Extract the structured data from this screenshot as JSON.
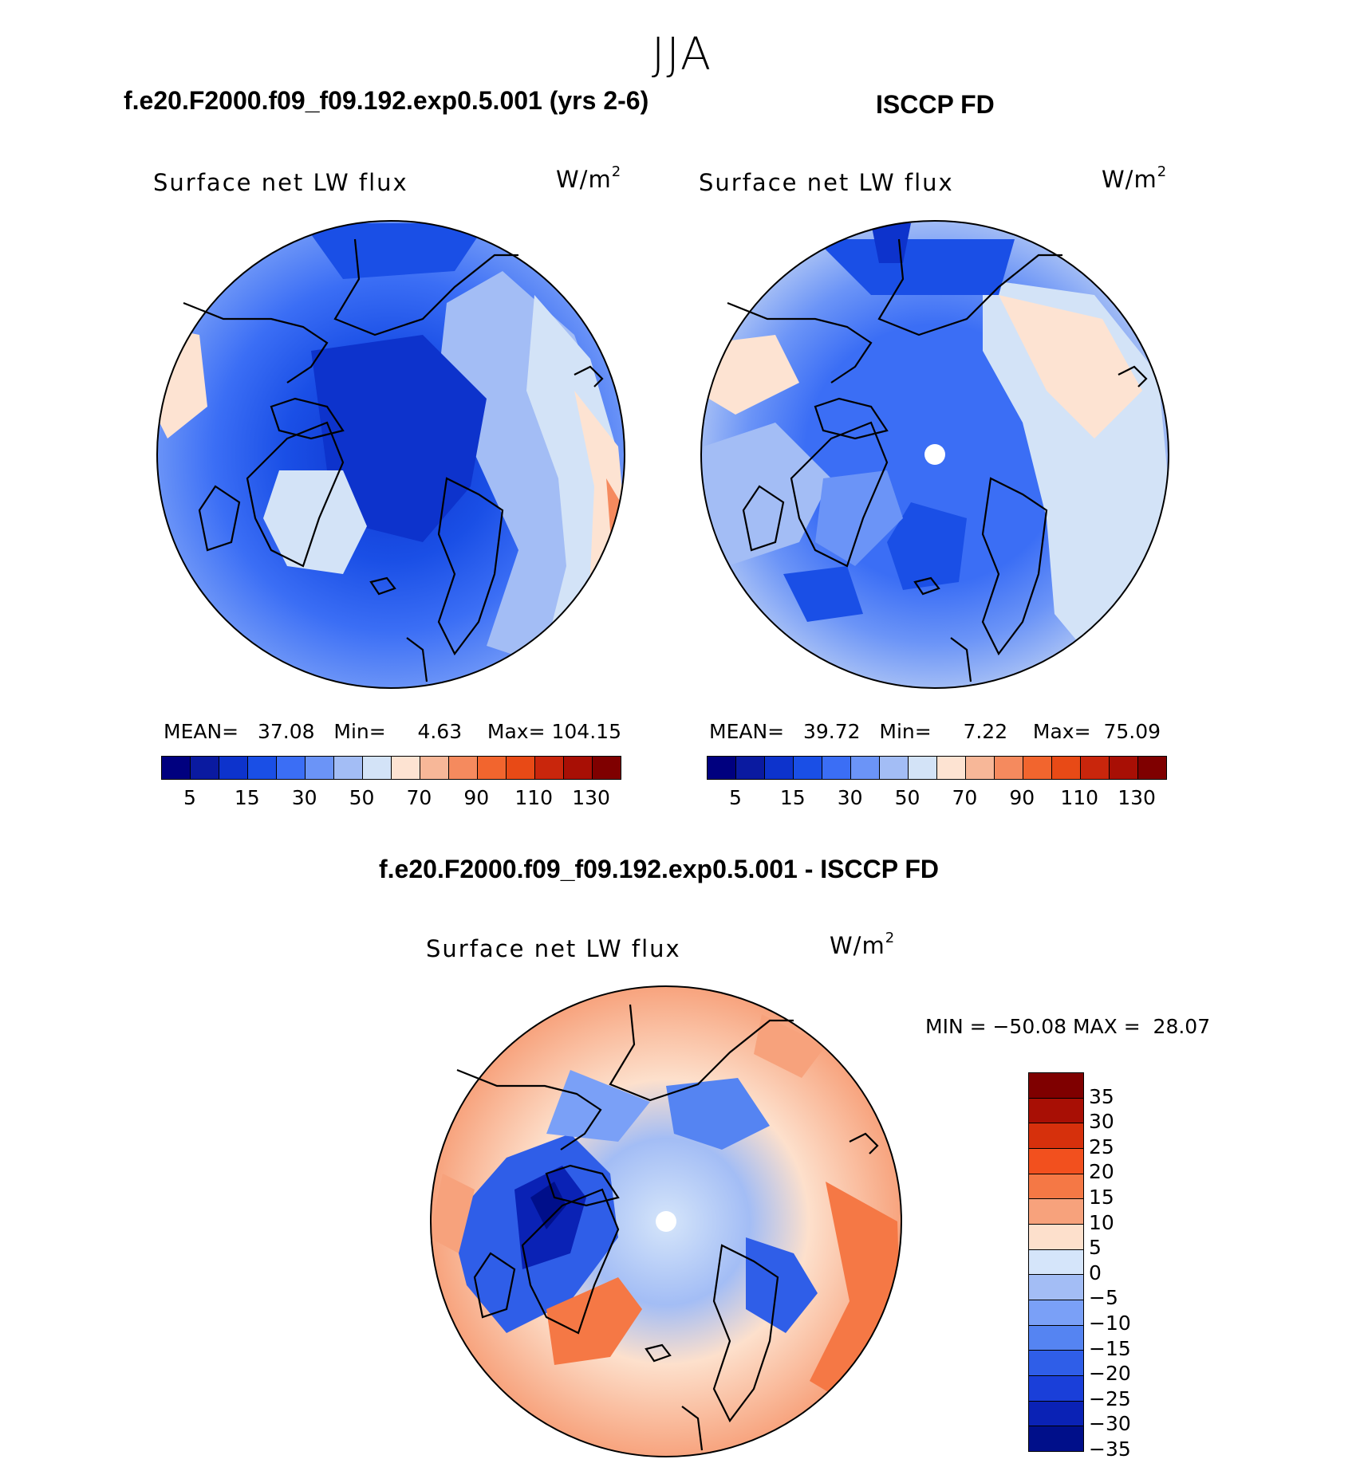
{
  "season": "JJA",
  "palette_abs": [
    "#00007f",
    "#0a1aa0",
    "#0d33cc",
    "#1a4fe6",
    "#3b6ef5",
    "#6b94f7",
    "#a3bdf5",
    "#d3e3f7",
    "#fde3d2",
    "#f7b798",
    "#f58a5e",
    "#f2652e",
    "#e84a16",
    "#c9260c",
    "#a80f05",
    "#7f0000"
  ],
  "palette_diff": [
    "#7f0000",
    "#a80f05",
    "#d6300c",
    "#f2501e",
    "#f57845",
    "#f7a27c",
    "#fde0cc",
    "#d5e5fa",
    "#a3bdf5",
    "#7aa0f7",
    "#5584f2",
    "#2f5ee8",
    "#1a3fd9",
    "#0a22b5",
    "#000f8a"
  ],
  "panels": [
    {
      "id": "model",
      "title": "f.e20.F2000.f09_f09.192.exp0.5.001 (yrs 2-6)",
      "label": "Surface net LW flux",
      "unit": "W/m",
      "unit_sup": "2",
      "mean_label": "MEAN=",
      "mean": "37.08",
      "min_label": "Min=",
      "min": "4.63",
      "max_label": "Max=",
      "max": "104.15",
      "ticks": [
        "5",
        "15",
        "30",
        "50",
        "70",
        "90",
        "110",
        "130"
      ]
    },
    {
      "id": "obs",
      "title": "ISCCP FD",
      "label": "Surface net LW flux",
      "unit": "W/m",
      "unit_sup": "2",
      "mean_label": "MEAN=",
      "mean": "39.72",
      "min_label": "Min=",
      "min": "7.22",
      "max_label": "Max=",
      "max": "75.09",
      "ticks": [
        "5",
        "15",
        "30",
        "50",
        "70",
        "90",
        "110",
        "130"
      ]
    }
  ],
  "diff": {
    "title": "f.e20.F2000.f09_f09.192.exp0.5.001 - ISCCP FD",
    "label": "Surface net LW flux",
    "unit": "W/m",
    "unit_sup": "2",
    "minmax": "MIN = −50.08 MAX =  28.07",
    "ticks": [
      "35",
      "30",
      "25",
      "20",
      "15",
      "10",
      "5",
      "0",
      "−5",
      "−10",
      "−15",
      "−20",
      "−25",
      "−30",
      "−35"
    ]
  }
}
